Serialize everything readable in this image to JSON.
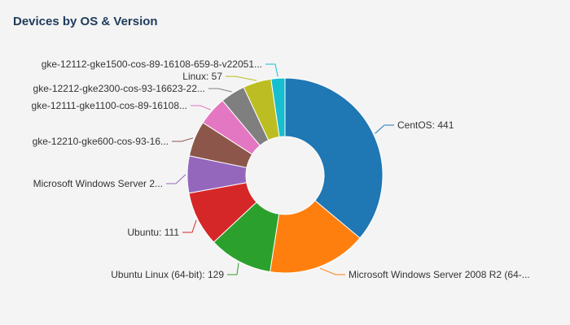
{
  "widget": {
    "title": "Devices by OS & Version"
  },
  "chart_data": {
    "type": "pie",
    "variant": "donut",
    "title": "Devices by OS & Version",
    "slices": [
      {
        "label": "CentOS: 441",
        "name": "CentOS",
        "value": 441,
        "color": "#1f77b4"
      },
      {
        "label": "Microsoft Windows Server 2008 R2 (64-...",
        "name": "Microsoft Windows Server 2008 R2 (64-bit)",
        "value": 200,
        "color": "#ff7f0e"
      },
      {
        "label": "Ubuntu Linux (64-bit): 129",
        "name": "Ubuntu Linux (64-bit)",
        "value": 129,
        "color": "#2ca02c"
      },
      {
        "label": "Ubuntu: 111",
        "name": "Ubuntu",
        "value": 111,
        "color": "#d62728"
      },
      {
        "label": "Microsoft Windows Server 2...",
        "name": "Microsoft Windows Server 2",
        "value": 75,
        "color": "#9467bd"
      },
      {
        "label": "gke-12210-gke600-cos-93-16...",
        "name": "gke-12210-gke600-cos-93-16",
        "value": 72,
        "color": "#8c564b"
      },
      {
        "label": "gke-12111-gke1100-cos-89-16108...",
        "name": "gke-12111-gke1100-cos-89-16108",
        "value": 59,
        "color": "#e377c2"
      },
      {
        "label": "gke-12212-gke2300-cos-93-16623-22...",
        "name": "gke-12212-gke2300-cos-93-16623-22",
        "value": 50,
        "color": "#7f7f7f"
      },
      {
        "label": "Linux: 57",
        "name": "Linux",
        "value": 57,
        "color": "#bcbd22"
      },
      {
        "label": "gke-12112-gke1500-cos-89-16108-659-8-v22051...",
        "name": "gke-12112-gke1500-cos-89-16108-659-8-v22051",
        "value": 28,
        "color": "#17becf"
      }
    ]
  }
}
